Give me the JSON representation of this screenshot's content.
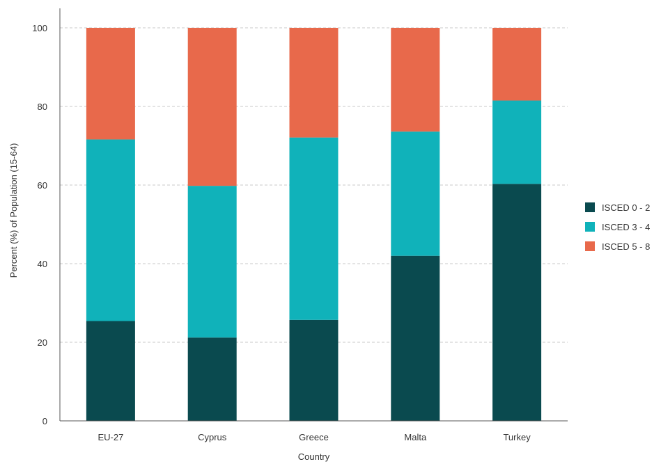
{
  "chart_data": {
    "type": "bar",
    "stacked": true,
    "categories": [
      "EU-27",
      "Cyprus",
      "Greece",
      "Malta",
      "Turkey"
    ],
    "series": [
      {
        "name": "ISCED 0 - 2",
        "color": "#0a4a4f",
        "values": [
          25.4,
          21.2,
          25.7,
          42.0,
          60.3
        ]
      },
      {
        "name": "ISCED 3 - 4",
        "color": "#10b2ba",
        "values": [
          46.2,
          38.6,
          46.4,
          31.6,
          21.2
        ]
      },
      {
        "name": "ISCED 5 - 8",
        "color": "#e8694b",
        "values": [
          28.4,
          40.2,
          27.9,
          26.4,
          18.5
        ]
      }
    ],
    "xlabel": "Country",
    "ylabel": "Percent (%) of Population (15-64)",
    "ylim": [
      0,
      100
    ],
    "yticks": [
      0,
      20,
      40,
      60,
      80,
      100
    ],
    "grid": true,
    "legend_position": "right"
  }
}
